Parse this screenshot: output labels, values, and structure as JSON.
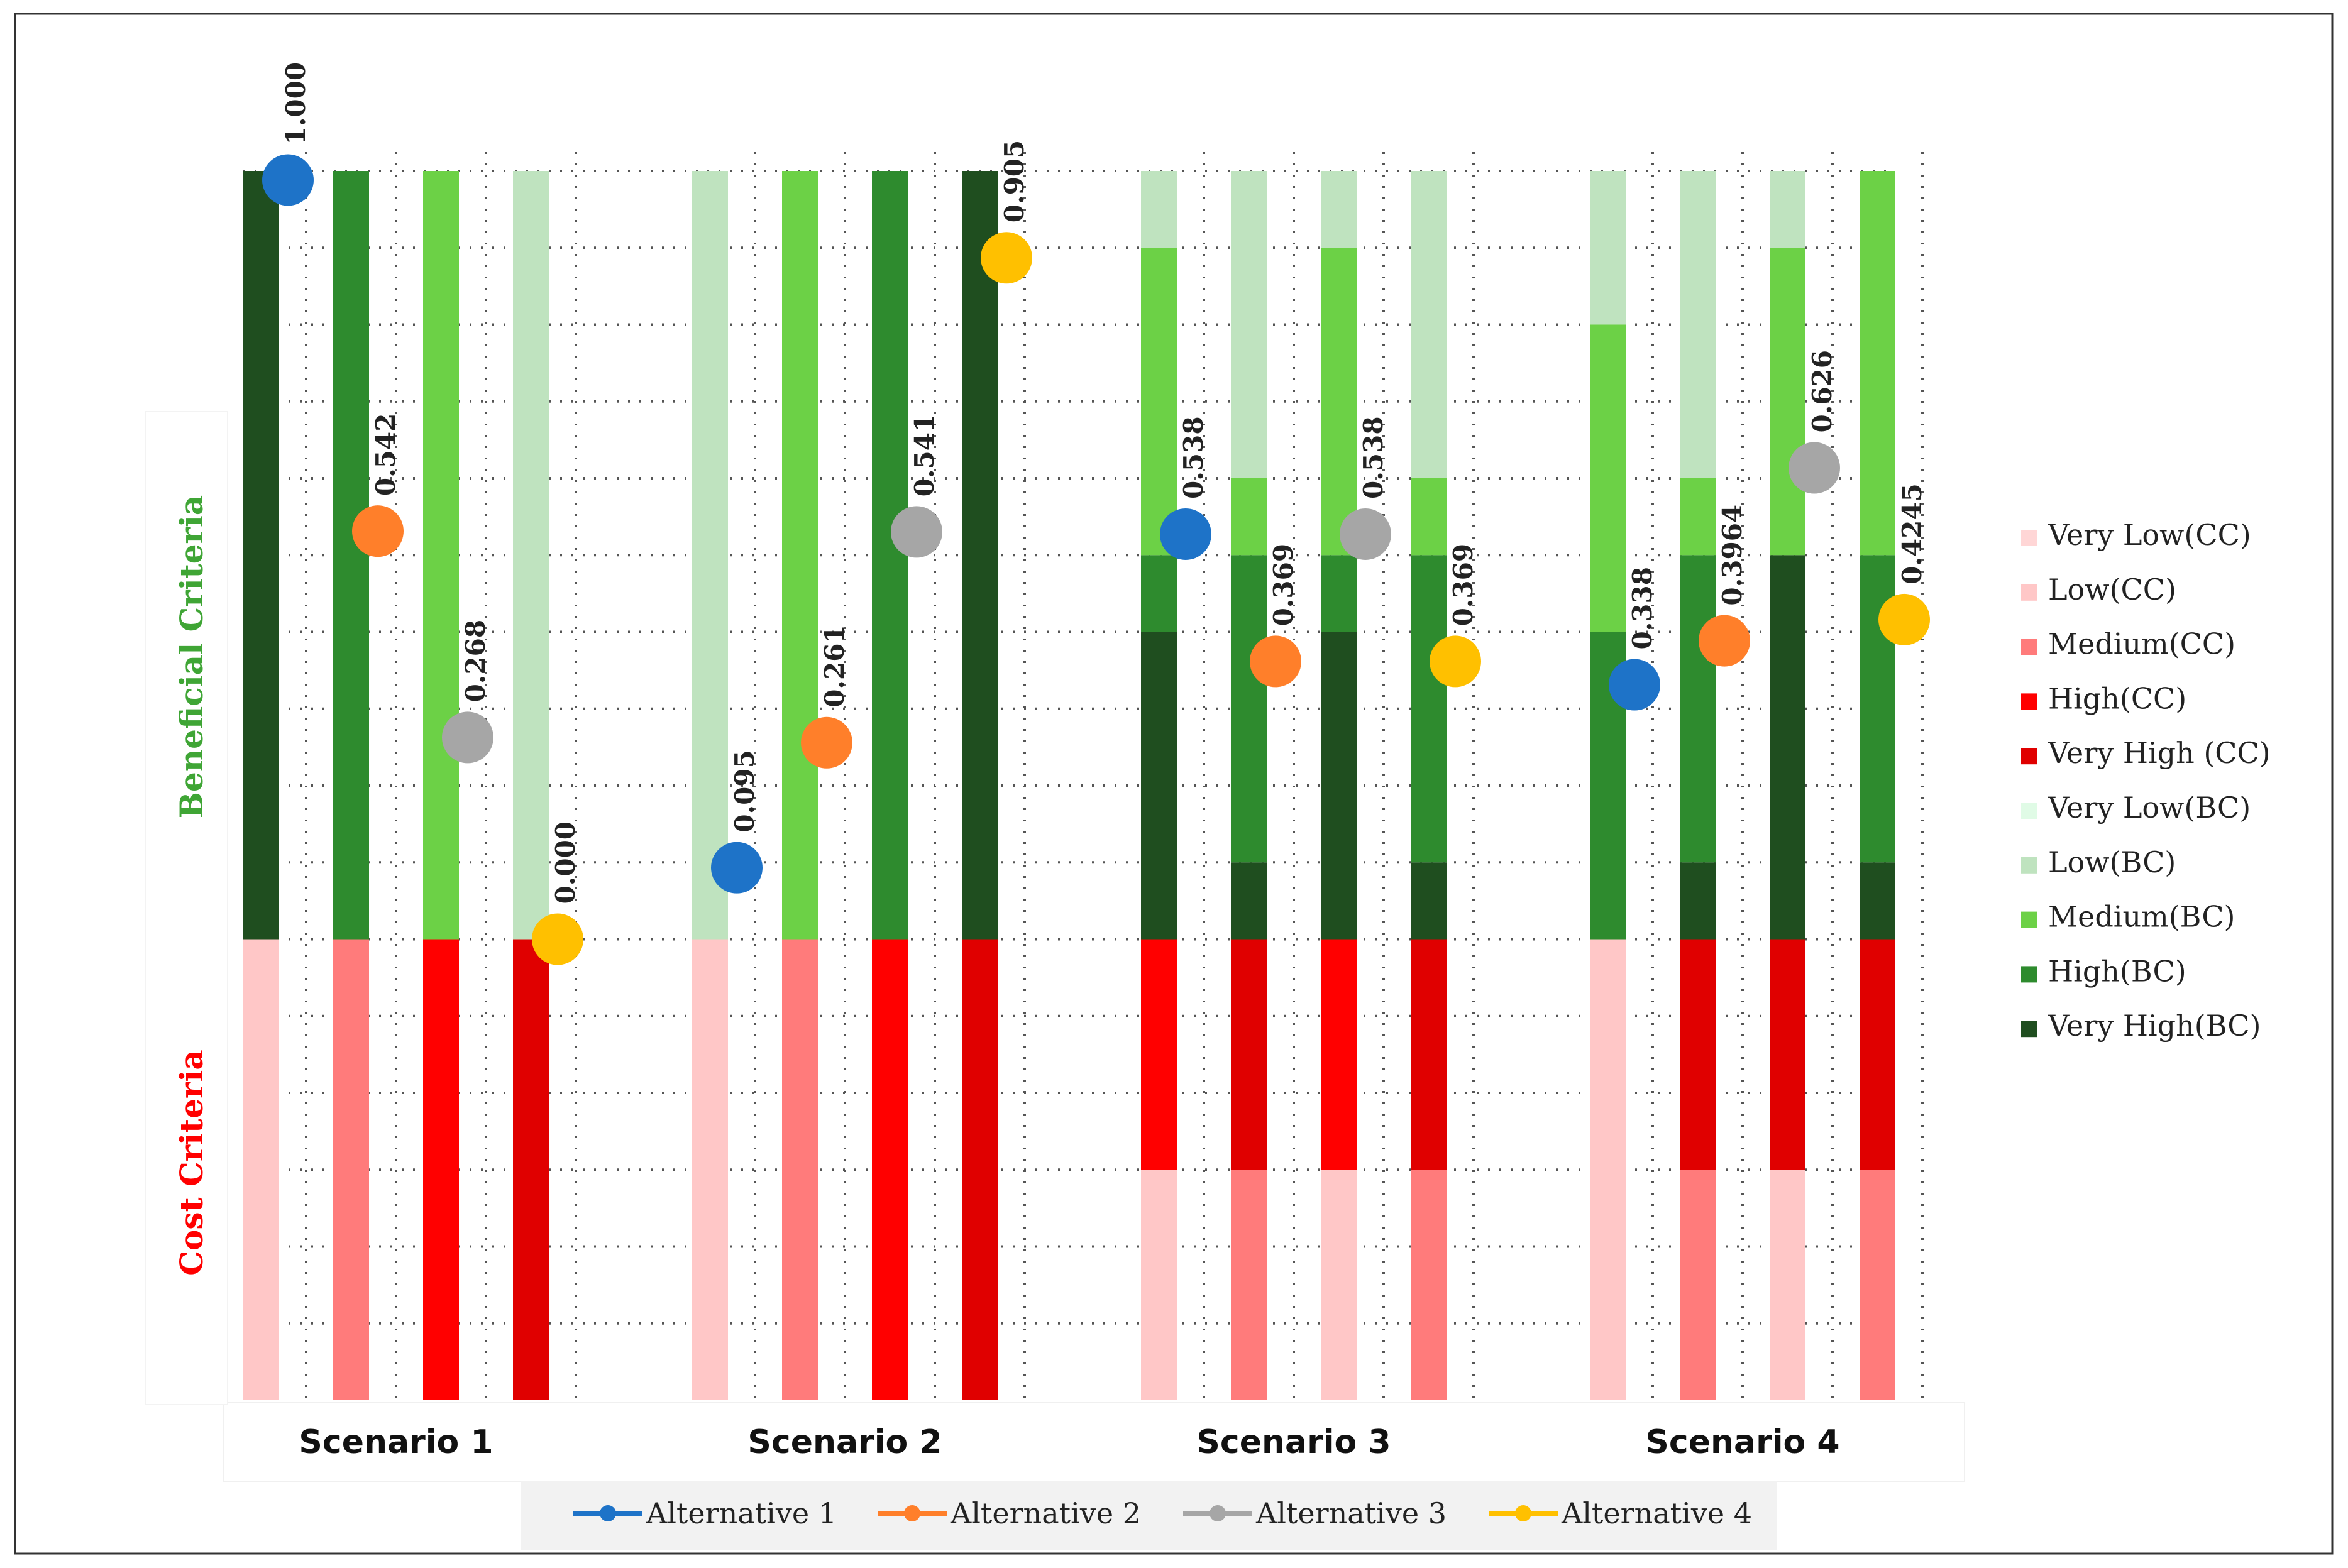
{
  "chart_data": {
    "type": "bar",
    "subtype": "stacked-bar-with-points",
    "title": "",
    "axis_labels": {
      "beneficial": "Beneficial Criteria",
      "cost": "Cost Criteria"
    },
    "scenarios": [
      "Scenario 1",
      "Scenario 2",
      "Scenario 3",
      "Scenario 4"
    ],
    "y_range": [
      0,
      16
    ],
    "y_split": 6,
    "grid": true,
    "category_legend_placement": "right",
    "point_legend_placement": "bottom",
    "categories": [
      {
        "name": "Very Low(CC)",
        "color": "#FFD6D6"
      },
      {
        "name": "Low(CC)",
        "color": "#FFC7C7"
      },
      {
        "name": "Medium(CC)",
        "color": "#FF7B7B"
      },
      {
        "name": "High(CC)",
        "color": "#FF0000"
      },
      {
        "name": "Very High (CC)",
        "color": "#E00000"
      },
      {
        "name": "Very Low(BC)",
        "color": "#E0FBE6"
      },
      {
        "name": "Low(BC)",
        "color": "#BFE3BF"
      },
      {
        "name": "Medium(BC)",
        "color": "#6CD146"
      },
      {
        "name": "High(BC)",
        "color": "#2E8B2E"
      },
      {
        "name": "Very High(BC)",
        "color": "#1F4E1F"
      }
    ],
    "alternatives": [
      {
        "name": "Alternative 1",
        "color": "#1E73C8"
      },
      {
        "name": "Alternative 2",
        "color": "#FF7F2A"
      },
      {
        "name": "Alternative 3",
        "color": "#A6A6A6"
      },
      {
        "name": "Alternative 4",
        "color": "#FFC000"
      }
    ],
    "bars": [
      {
        "scenario": 0,
        "segments": [
          {
            "category": "Low(CC)",
            "from": 0,
            "to": 6
          },
          {
            "category": "Very High(BC)",
            "from": 6,
            "to": 16
          }
        ]
      },
      {
        "scenario": 0,
        "segments": [
          {
            "category": "Medium(CC)",
            "from": 0,
            "to": 6
          },
          {
            "category": "High(BC)",
            "from": 6,
            "to": 16
          }
        ]
      },
      {
        "scenario": 0,
        "segments": [
          {
            "category": "High(CC)",
            "from": 0,
            "to": 6
          },
          {
            "category": "Medium(BC)",
            "from": 6,
            "to": 16
          }
        ]
      },
      {
        "scenario": 0,
        "segments": [
          {
            "category": "Very High (CC)",
            "from": 0,
            "to": 6
          },
          {
            "category": "Low(BC)",
            "from": 6,
            "to": 16
          }
        ]
      },
      {
        "scenario": 1,
        "segments": [
          {
            "category": "Low(CC)",
            "from": 0,
            "to": 6
          },
          {
            "category": "Low(BC)",
            "from": 6,
            "to": 16
          }
        ]
      },
      {
        "scenario": 1,
        "segments": [
          {
            "category": "Medium(CC)",
            "from": 0,
            "to": 6
          },
          {
            "category": "Medium(BC)",
            "from": 6,
            "to": 16
          }
        ]
      },
      {
        "scenario": 1,
        "segments": [
          {
            "category": "High(CC)",
            "from": 0,
            "to": 6
          },
          {
            "category": "High(BC)",
            "from": 6,
            "to": 16
          }
        ]
      },
      {
        "scenario": 1,
        "segments": [
          {
            "category": "Very High (CC)",
            "from": 0,
            "to": 6
          },
          {
            "category": "Very High(BC)",
            "from": 6,
            "to": 16
          }
        ]
      },
      {
        "scenario": 2,
        "segments": [
          {
            "category": "Low(CC)",
            "from": 0,
            "to": 3
          },
          {
            "category": "High(CC)",
            "from": 3,
            "to": 6
          },
          {
            "category": "Very High(BC)",
            "from": 6,
            "to": 10
          },
          {
            "category": "High(BC)",
            "from": 10,
            "to": 11
          },
          {
            "category": "Medium(BC)",
            "from": 11,
            "to": 15
          },
          {
            "category": "Low(BC)",
            "from": 15,
            "to": 16
          }
        ]
      },
      {
        "scenario": 2,
        "segments": [
          {
            "category": "Medium(CC)",
            "from": 0,
            "to": 3
          },
          {
            "category": "Very High (CC)",
            "from": 3,
            "to": 6
          },
          {
            "category": "Very High(BC)",
            "from": 6,
            "to": 7
          },
          {
            "category": "High(BC)",
            "from": 7,
            "to": 11
          },
          {
            "category": "Medium(BC)",
            "from": 11,
            "to": 12
          },
          {
            "category": "Low(BC)",
            "from": 12,
            "to": 16
          }
        ]
      },
      {
        "scenario": 2,
        "segments": [
          {
            "category": "Low(CC)",
            "from": 0,
            "to": 3
          },
          {
            "category": "High(CC)",
            "from": 3,
            "to": 6
          },
          {
            "category": "Very High(BC)",
            "from": 6,
            "to": 10
          },
          {
            "category": "High(BC)",
            "from": 10,
            "to": 11
          },
          {
            "category": "Medium(BC)",
            "from": 11,
            "to": 15
          },
          {
            "category": "Low(BC)",
            "from": 15,
            "to": 16
          }
        ]
      },
      {
        "scenario": 2,
        "segments": [
          {
            "category": "Medium(CC)",
            "from": 0,
            "to": 3
          },
          {
            "category": "Very High (CC)",
            "from": 3,
            "to": 6
          },
          {
            "category": "Very High(BC)",
            "from": 6,
            "to": 7
          },
          {
            "category": "High(BC)",
            "from": 7,
            "to": 11
          },
          {
            "category": "Medium(BC)",
            "from": 11,
            "to": 12
          },
          {
            "category": "Low(BC)",
            "from": 12,
            "to": 16
          }
        ]
      },
      {
        "scenario": 3,
        "segments": [
          {
            "category": "Low(CC)",
            "from": 0,
            "to": 6
          },
          {
            "category": "High(BC)",
            "from": 6,
            "to": 10
          },
          {
            "category": "Medium(BC)",
            "from": 10,
            "to": 14
          },
          {
            "category": "Low(BC)",
            "from": 14,
            "to": 16
          }
        ]
      },
      {
        "scenario": 3,
        "segments": [
          {
            "category": "Medium(CC)",
            "from": 0,
            "to": 3
          },
          {
            "category": "Very High (CC)",
            "from": 3,
            "to": 6
          },
          {
            "category": "Very High(BC)",
            "from": 6,
            "to": 7
          },
          {
            "category": "High(BC)",
            "from": 7,
            "to": 11
          },
          {
            "category": "Medium(BC)",
            "from": 11,
            "to": 12
          },
          {
            "category": "Low(BC)",
            "from": 12,
            "to": 16
          }
        ]
      },
      {
        "scenario": 3,
        "segments": [
          {
            "category": "Low(CC)",
            "from": 0,
            "to": 3
          },
          {
            "category": "Very High (CC)",
            "from": 3,
            "to": 6
          },
          {
            "category": "Very High(BC)",
            "from": 6,
            "to": 11
          },
          {
            "category": "Medium(BC)",
            "from": 11,
            "to": 15
          },
          {
            "category": "Low(BC)",
            "from": 15,
            "to": 16
          }
        ]
      },
      {
        "scenario": 3,
        "segments": [
          {
            "category": "Medium(CC)",
            "from": 0,
            "to": 3
          },
          {
            "category": "Very High (CC)",
            "from": 3,
            "to": 6
          },
          {
            "category": "Very High(BC)",
            "from": 6,
            "to": 7
          },
          {
            "category": "High(BC)",
            "from": 7,
            "to": 11
          },
          {
            "category": "Medium(BC)",
            "from": 11,
            "to": 16
          }
        ]
      }
    ],
    "points": [
      {
        "alternative": 0,
        "scenario": 0,
        "value": 1.0,
        "label": "1.000"
      },
      {
        "alternative": 1,
        "scenario": 0,
        "value": 0.542,
        "label": "0.542"
      },
      {
        "alternative": 2,
        "scenario": 0,
        "value": 0.268,
        "label": "0.268"
      },
      {
        "alternative": 3,
        "scenario": 0,
        "value": 0.0,
        "label": "0.000"
      },
      {
        "alternative": 0,
        "scenario": 1,
        "value": 0.095,
        "label": "0.095"
      },
      {
        "alternative": 1,
        "scenario": 1,
        "value": 0.261,
        "label": "0.261"
      },
      {
        "alternative": 2,
        "scenario": 1,
        "value": 0.541,
        "label": "0.541"
      },
      {
        "alternative": 3,
        "scenario": 1,
        "value": 0.905,
        "label": "0.905"
      },
      {
        "alternative": 0,
        "scenario": 2,
        "value": 0.538,
        "label": "0.538"
      },
      {
        "alternative": 1,
        "scenario": 2,
        "value": 0.369,
        "label": "0.369"
      },
      {
        "alternative": 2,
        "scenario": 2,
        "value": 0.538,
        "label": "0.538"
      },
      {
        "alternative": 3,
        "scenario": 2,
        "value": 0.369,
        "label": "0.369"
      },
      {
        "alternative": 0,
        "scenario": 3,
        "value": 0.338,
        "label": "0.338"
      },
      {
        "alternative": 1,
        "scenario": 3,
        "value": 0.3964,
        "label": "0.3964"
      },
      {
        "alternative": 2,
        "scenario": 3,
        "value": 0.626,
        "label": "0.626"
      },
      {
        "alternative": 3,
        "scenario": 3,
        "value": 0.4245,
        "label": "0.4245"
      }
    ]
  }
}
